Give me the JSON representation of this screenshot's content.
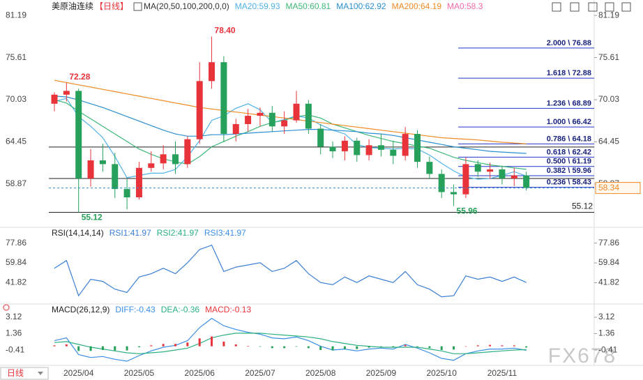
{
  "period_button": "日线",
  "watermark": "FX678",
  "chart_data": [
    {
      "type": "candlestick",
      "title": "美原油连续",
      "subtitle": "【日线】",
      "indicator": "MA(20,50,100,200,0,0)",
      "categories": [
        null,
        null,
        "2025/04",
        null,
        null,
        null,
        null,
        "2025/05",
        null,
        null,
        null,
        null,
        "2025/06",
        null,
        null,
        null,
        null,
        "2025/07",
        null,
        null,
        null,
        null,
        "2025/08",
        null,
        null,
        null,
        null,
        "2025/09",
        null,
        null,
        null,
        null,
        "2025/10",
        null,
        null,
        null,
        null,
        "2025/11",
        null,
        null
      ],
      "open": [
        69.5,
        70.7,
        71.2,
        59.6,
        62.0,
        61.5,
        58.2,
        57.1,
        61.0,
        61.6,
        62.8,
        61.5,
        64.8,
        72.5,
        75.0,
        65.5,
        66.8,
        67.9,
        68.3,
        66.5,
        67.3,
        69.5,
        66.2,
        63.8,
        63.2,
        64.6,
        62.7,
        64.0,
        63.4,
        62.6,
        65.5,
        61.8,
        60.2,
        57.8,
        57.5,
        61.5,
        60.5,
        60.8,
        59.6,
        60.0
      ],
      "high": [
        71.0,
        72.28,
        71.5,
        63.5,
        64.2,
        63.0,
        59.5,
        61.8,
        63.2,
        64.0,
        64.5,
        65.2,
        75.0,
        78.4,
        75.8,
        67.5,
        68.8,
        69.0,
        69.2,
        68.5,
        71.2,
        70.0,
        66.8,
        64.5,
        65.2,
        65.0,
        64.8,
        65.5,
        64.6,
        66.4,
        66.0,
        62.5,
        60.8,
        58.8,
        62.4,
        62.0,
        61.7,
        61.3,
        61.0,
        60.5
      ],
      "low": [
        68.5,
        69.8,
        55.12,
        58.5,
        60.5,
        57.0,
        55.5,
        56.8,
        60.5,
        60.8,
        60.2,
        61.0,
        64.2,
        71.5,
        64.4,
        64.5,
        65.8,
        66.5,
        65.8,
        65.5,
        67.0,
        65.5,
        62.8,
        62.3,
        62.0,
        61.8,
        62.0,
        62.5,
        61.5,
        62.0,
        61.0,
        59.5,
        57.0,
        55.96,
        57.0,
        59.8,
        59.5,
        58.8,
        58.6,
        58.0
      ],
      "close": [
        70.7,
        71.2,
        59.6,
        62.0,
        61.5,
        58.2,
        57.1,
        61.0,
        61.6,
        62.8,
        61.5,
        64.8,
        72.5,
        75.0,
        65.5,
        66.8,
        67.9,
        68.3,
        66.5,
        67.3,
        69.5,
        66.2,
        63.8,
        63.2,
        64.6,
        62.7,
        64.0,
        63.4,
        62.6,
        65.5,
        61.8,
        60.2,
        57.8,
        57.5,
        61.5,
        60.5,
        60.8,
        59.6,
        60.0,
        58.34
      ],
      "up_color": "#e8333a",
      "down_color": "#26a05a",
      "series": [
        {
          "name": "MA20:59.93",
          "color": "#4fb3e8",
          "values": [
            69.8,
            70.2,
            67.8,
            66.5,
            65.0,
            62.5,
            59.7,
            60.0,
            60.3,
            60.3,
            60.8,
            62.5,
            64.6,
            67.3,
            67.9,
            68.9,
            69.5,
            68.7,
            67.0,
            67.4,
            67.9,
            67.6,
            66.7,
            66.0,
            65.5,
            64.1,
            63.7,
            63.6,
            63.5,
            63.6,
            63.5,
            62.7,
            61.6,
            60.6,
            59.8,
            59.5,
            59.6,
            60.0,
            60.5,
            59.93
          ]
        },
        {
          "name": "MA50:60.81",
          "color": "#3cb878",
          "values": [
            70.0,
            69.6,
            68.5,
            67.5,
            66.5,
            65.5,
            64.5,
            63.5,
            62.8,
            62.2,
            61.8,
            61.5,
            62.5,
            63.8,
            64.5,
            65.2,
            65.8,
            66.5,
            67.0,
            67.3,
            67.8,
            68.0,
            67.6,
            66.8,
            66.3,
            65.8,
            65.3,
            64.9,
            64.5,
            64.2,
            63.9,
            63.6,
            63.0,
            62.4,
            62.0,
            61.7,
            61.4,
            61.2,
            61.0,
            60.81
          ]
        },
        {
          "name": "MA100:62.92",
          "color": "#2a8fd0",
          "values": [
            70.5,
            70.4,
            70.0,
            69.5,
            69.0,
            68.4,
            67.8,
            67.2,
            66.6,
            66.0,
            65.5,
            65.2,
            65.2,
            65.4,
            65.4,
            65.5,
            65.6,
            65.7,
            65.8,
            65.9,
            66.0,
            66.1,
            66.1,
            66.0,
            65.9,
            65.8,
            65.6,
            65.5,
            65.3,
            65.0,
            64.7,
            64.4,
            64.1,
            63.8,
            63.6,
            63.4,
            63.2,
            63.1,
            63.0,
            62.92
          ]
        },
        {
          "name": "MA200:64.19",
          "color": "#f08a24",
          "values": [
            72.6,
            72.3,
            72.0,
            71.7,
            71.4,
            71.1,
            70.8,
            70.5,
            70.2,
            69.9,
            69.6,
            69.3,
            69.0,
            68.8,
            68.6,
            68.4,
            68.2,
            68.0,
            67.8,
            67.6,
            67.4,
            67.2,
            67.0,
            66.8,
            66.6,
            66.4,
            66.2,
            66.0,
            65.8,
            65.6,
            65.4,
            65.2,
            65.0,
            64.9,
            64.8,
            64.7,
            64.55,
            64.4,
            64.3,
            64.19
          ]
        },
        {
          "name": "MA0:58.3",
          "color": "#f06aa8"
        }
      ],
      "ylim": [
        53.5,
        82.5
      ],
      "yticks": [
        58.87,
        64.45,
        70.03,
        75.61,
        81.19
      ],
      "annotations": [
        {
          "value": 78.4,
          "label": "78.40"
        },
        {
          "value": 72.28,
          "label": "72.28"
        },
        {
          "value": 55.12,
          "label": "55.12"
        },
        {
          "value": 55.96,
          "label": "55.96"
        }
      ],
      "fibonacci": [
        {
          "value": 76.88,
          "label": "2.000 \\ 76.88"
        },
        {
          "value": 72.88,
          "label": "1.618 \\ 72.88"
        },
        {
          "value": 68.89,
          "label": "1.236 \\ 68.89"
        },
        {
          "value": 66.42,
          "label": "1.000 \\ 66.42"
        },
        {
          "value": 64.18,
          "label": "0.786 \\ 64.18"
        },
        {
          "value": 62.42,
          "label": "0.618 \\ 62.42"
        },
        {
          "value": 61.19,
          "label": "0.500 \\ 61.19"
        },
        {
          "value": 59.96,
          "label": "0.382 \\ 59.96"
        },
        {
          "value": 58.43,
          "label": "0.236 \\ 58.43"
        }
      ],
      "hlines": [
        63.76,
        59.6,
        {
          "value": 55.12,
          "label": "55.12"
        }
      ],
      "last_price": {
        "value": 58.34,
        "label": "58.34"
      }
    },
    {
      "type": "line",
      "title": "RSI(14,14,14)",
      "series": [
        {
          "name": "RSI1:41.97",
          "color": "#3a7fd5",
          "values": [
            55,
            62,
            30,
            45,
            43,
            36,
            33,
            47,
            50,
            55,
            50,
            60,
            72,
            76,
            52,
            56,
            58,
            60,
            52,
            55,
            62,
            50,
            42,
            40,
            47,
            42,
            48,
            45,
            42,
            52,
            40,
            36,
            29,
            30,
            48,
            45,
            47,
            43,
            47,
            41.97
          ]
        },
        {
          "name": "RSI2:41.97",
          "color": "#2bb07f"
        },
        {
          "name": "RSI3:41.97",
          "color": "#3a8ee6"
        }
      ],
      "ylim": [
        25,
        89.7
      ],
      "yticks": [
        41.82,
        59.84,
        77.86
      ]
    },
    {
      "type": "macd",
      "title": "MACD(26,12,9)",
      "series": [
        {
          "name": "DIFF:-0.43",
          "color": "#3a8ee6",
          "values": [
            0.6,
            0.9,
            -0.9,
            -1.2,
            -1.1,
            -1.4,
            -1.6,
            -1.0,
            -0.5,
            -0.1,
            0.1,
            0.6,
            2.0,
            3.0,
            2.2,
            1.8,
            1.5,
            1.3,
            0.9,
            0.8,
            1.0,
            0.6,
            0.0,
            -0.4,
            -0.3,
            -0.5,
            -0.3,
            -0.2,
            -0.3,
            0.2,
            -0.2,
            -0.7,
            -1.3,
            -1.5,
            -0.8,
            -0.5,
            -0.3,
            -0.3,
            -0.2,
            -0.43
          ]
        },
        {
          "name": "DEA:-0.36",
          "color": "#2bb07f",
          "values": [
            0.4,
            0.5,
            0.2,
            -0.1,
            -0.3,
            -0.5,
            -0.7,
            -0.8,
            -0.7,
            -0.6,
            -0.4,
            -0.2,
            0.3,
            0.9,
            1.2,
            1.4,
            1.4,
            1.4,
            1.3,
            1.2,
            1.1,
            1.0,
            0.8,
            0.5,
            0.3,
            0.1,
            0.0,
            -0.1,
            -0.1,
            -0.1,
            -0.1,
            -0.3,
            -0.5,
            -0.8,
            -0.8,
            -0.7,
            -0.6,
            -0.5,
            -0.4,
            -0.36
          ]
        },
        {
          "name": "MACD:-0.13",
          "color": "#e8333a",
          "down_color": "#26a05a",
          "values": [
            0.1,
            0.2,
            -0.5,
            -0.5,
            -0.4,
            -0.45,
            -0.45,
            -0.1,
            0.1,
            0.25,
            0.25,
            0.4,
            0.85,
            1.05,
            0.5,
            0.2,
            0.05,
            -0.05,
            -0.2,
            -0.2,
            -0.05,
            -0.2,
            -0.4,
            -0.45,
            -0.3,
            -0.3,
            -0.15,
            -0.05,
            -0.1,
            0.15,
            -0.05,
            -0.2,
            -0.4,
            -0.35,
            0.0,
            0.1,
            0.15,
            0.1,
            0.1,
            -0.13
          ]
        }
      ],
      "ylim": [
        -1.9,
        4.24
      ],
      "yticks": [
        -0.41,
        1.36,
        3.12
      ]
    }
  ]
}
